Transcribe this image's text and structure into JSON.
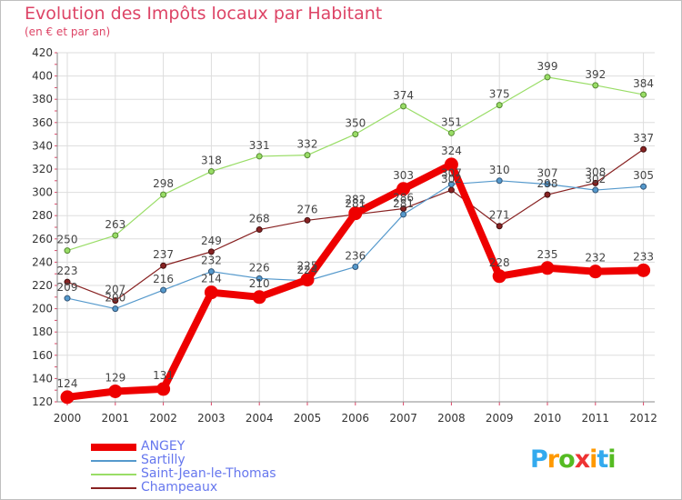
{
  "chart_data": {
    "type": "line",
    "title": "Evolution des Impôts locaux par Habitant",
    "subtitle": "(en € et par an)",
    "xlabel": "",
    "ylabel": "",
    "categories": [
      "2000",
      "2001",
      "2002",
      "2003",
      "2004",
      "2005",
      "2006",
      "2007",
      "2008",
      "2009",
      "2010",
      "2011",
      "2012"
    ],
    "ylim": [
      120,
      420
    ],
    "yticks": [
      120,
      140,
      160,
      180,
      200,
      220,
      240,
      260,
      280,
      300,
      320,
      340,
      360,
      380,
      400,
      420
    ],
    "grid": true,
    "legend_position": "bottom-left",
    "series": [
      {
        "name": "ANGEY",
        "color": "#ee0000",
        "values": [
          124,
          129,
          131,
          214,
          210,
          225,
          282,
          303,
          324,
          228,
          235,
          232,
          233
        ]
      },
      {
        "name": "Sartilly",
        "color": "#5599cc",
        "values": [
          209,
          200,
          216,
          232,
          226,
          224,
          236,
          281,
          307,
          310,
          307,
          302,
          305
        ]
      },
      {
        "name": "Saint-Jean-le-Thomas",
        "color": "#99dd66",
        "values": [
          250,
          263,
          298,
          318,
          331,
          332,
          350,
          374,
          351,
          375,
          399,
          392,
          384
        ]
      },
      {
        "name": "Champeaux",
        "color": "#882222",
        "values": [
          223,
          207,
          237,
          249,
          268,
          276,
          281,
          286,
          302,
          271,
          298,
          308,
          337
        ]
      }
    ]
  },
  "logo": {
    "text": "Proxiti",
    "colors": [
      "#33aaee",
      "#ff9900",
      "#55bb22",
      "#ee3333",
      "#ff9900",
      "#33aaee",
      "#55bb22"
    ]
  }
}
